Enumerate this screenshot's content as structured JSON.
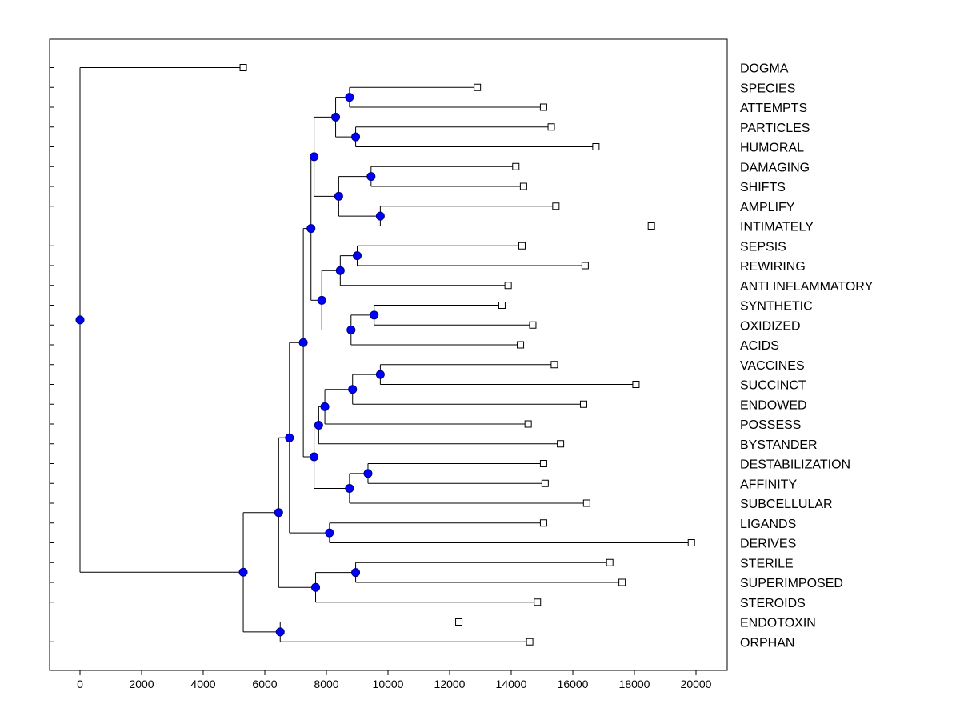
{
  "chart_data": {
    "type": "dendrogram",
    "title": "",
    "xlabel": "",
    "ylabel": "",
    "xlim": [
      -1000,
      21000
    ],
    "x_ticks": [
      0,
      2000,
      4000,
      6000,
      8000,
      10000,
      12000,
      14000,
      16000,
      18000,
      20000
    ],
    "orientation": "horizontal",
    "grid": false,
    "leaves": [
      {
        "label": "DOGMA",
        "value": 5300
      },
      {
        "label": "SPECIES",
        "value": 12900
      },
      {
        "label": "ATTEMPTS",
        "value": 15050
      },
      {
        "label": "PARTICLES",
        "value": 15300
      },
      {
        "label": "HUMORAL",
        "value": 16750
      },
      {
        "label": "DAMAGING",
        "value": 14150
      },
      {
        "label": "SHIFTS",
        "value": 14400
      },
      {
        "label": "AMPLIFY",
        "value": 15450
      },
      {
        "label": "INTIMATELY",
        "value": 18550
      },
      {
        "label": "SEPSIS",
        "value": 14350
      },
      {
        "label": "REWIRING",
        "value": 16400
      },
      {
        "label": "ANTI INFLAMMATORY",
        "value": 13900
      },
      {
        "label": "SYNTHETIC",
        "value": 13700
      },
      {
        "label": "OXIDIZED",
        "value": 14700
      },
      {
        "label": "ACIDS",
        "value": 14300
      },
      {
        "label": "VACCINES",
        "value": 15400
      },
      {
        "label": "SUCCINCT",
        "value": 18050
      },
      {
        "label": "ENDOWED",
        "value": 16350
      },
      {
        "label": "POSSESS",
        "value": 14550
      },
      {
        "label": "BYSTANDER",
        "value": 15600
      },
      {
        "label": "DESTABILIZATION",
        "value": 15050
      },
      {
        "label": "AFFINITY",
        "value": 15100
      },
      {
        "label": "SUBCELLULAR",
        "value": 16450
      },
      {
        "label": "LIGANDS",
        "value": 15050
      },
      {
        "label": "DERIVES",
        "value": 19850
      },
      {
        "label": "STERILE",
        "value": 17200
      },
      {
        "label": "SUPERIMPOSED",
        "value": 17600
      },
      {
        "label": "STEROIDS",
        "value": 14850
      },
      {
        "label": "ENDOTOXIN",
        "value": 12300
      },
      {
        "label": "ORPHAN",
        "value": 14600
      }
    ],
    "merges": [
      {
        "id": "m1",
        "height": 8750,
        "children": [
          1,
          2
        ]
      },
      {
        "id": "m2",
        "height": 8950,
        "children": [
          3,
          4
        ]
      },
      {
        "id": "m3",
        "height": 8300,
        "children": [
          "m1",
          "m2"
        ]
      },
      {
        "id": "m4",
        "height": 9450,
        "children": [
          5,
          6
        ]
      },
      {
        "id": "m5",
        "height": 9750,
        "children": [
          7,
          8
        ]
      },
      {
        "id": "m6",
        "height": 8400,
        "children": [
          "m4",
          "m5"
        ]
      },
      {
        "id": "m7",
        "height": 7600,
        "children": [
          "m3",
          "m6"
        ]
      },
      {
        "id": "m8",
        "height": 9000,
        "children": [
          9,
          10
        ]
      },
      {
        "id": "m9",
        "height": 8450,
        "children": [
          "m8",
          11
        ]
      },
      {
        "id": "m10",
        "height": 9550,
        "children": [
          12,
          13
        ]
      },
      {
        "id": "m11",
        "height": 8800,
        "children": [
          "m10",
          14
        ]
      },
      {
        "id": "m12",
        "height": 7850,
        "children": [
          "m9",
          "m11"
        ]
      },
      {
        "id": "m13",
        "height": 7500,
        "children": [
          "m7",
          "m12"
        ]
      },
      {
        "id": "m14",
        "height": 9750,
        "children": [
          15,
          16
        ]
      },
      {
        "id": "m15",
        "height": 8850,
        "children": [
          "m14",
          17
        ]
      },
      {
        "id": "m16",
        "height": 7950,
        "children": [
          "m15",
          18
        ]
      },
      {
        "id": "m17",
        "height": 7750,
        "children": [
          "m16",
          19
        ]
      },
      {
        "id": "m18",
        "height": 9350,
        "children": [
          20,
          21
        ]
      },
      {
        "id": "m19",
        "height": 8750,
        "children": [
          "m18",
          22
        ]
      },
      {
        "id": "m20",
        "height": 7600,
        "children": [
          "m17",
          "m19"
        ]
      },
      {
        "id": "m21",
        "height": 7250,
        "children": [
          "m13",
          "m20"
        ]
      },
      {
        "id": "m22",
        "height": 8100,
        "children": [
          23,
          24
        ]
      },
      {
        "id": "m23",
        "height": 6800,
        "children": [
          "m21",
          "m22"
        ]
      },
      {
        "id": "m24",
        "height": 8950,
        "children": [
          25,
          26
        ]
      },
      {
        "id": "m25",
        "height": 7650,
        "children": [
          "m24",
          27
        ]
      },
      {
        "id": "m26",
        "height": 6450,
        "children": [
          "m23",
          "m25"
        ]
      },
      {
        "id": "m27",
        "height": 6500,
        "children": [
          28,
          29
        ]
      },
      {
        "id": "m28",
        "height": 5300,
        "children": [
          "m26",
          "m27"
        ]
      },
      {
        "id": "m29",
        "height": 0,
        "children": [
          0,
          "m28"
        ]
      }
    ],
    "colors": {
      "node_fill": "#0000ff",
      "node_stroke": "#000080",
      "line": "#000000",
      "leaf_marker_fill": "#ffffff"
    }
  }
}
